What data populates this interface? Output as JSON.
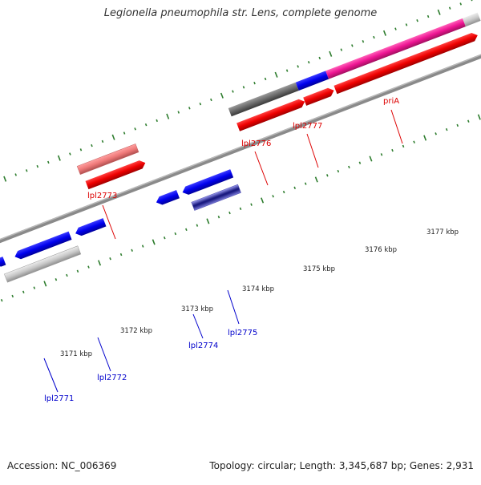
{
  "title": "Legionella pneumophila str. Lens, complete genome",
  "footer": {
    "accession": "Accession: NC_006369",
    "summary": "Topology: circular; Length: 3,345,687 bp; Genes: 2,931"
  },
  "colors": {
    "forward_label": "#dd0000",
    "reverse_label": "#0000cc",
    "backbone": "#808080",
    "tick": "#2e7d2e"
  },
  "scale_labels": [
    "3171 kbp",
    "3172 kbp",
    "3173 kbp",
    "3174 kbp",
    "3175 kbp",
    "3176 kbp",
    "3177 kbp"
  ],
  "forward_genes": [
    {
      "label": "lpl2773"
    },
    {
      "label": "lpl2776"
    },
    {
      "label": "lpl2777"
    },
    {
      "label": "priA"
    }
  ],
  "reverse_genes": [
    {
      "label": "lpl2771"
    },
    {
      "label": "lpl2772"
    },
    {
      "label": "lpl2774"
    },
    {
      "label": "lpl2775"
    }
  ]
}
